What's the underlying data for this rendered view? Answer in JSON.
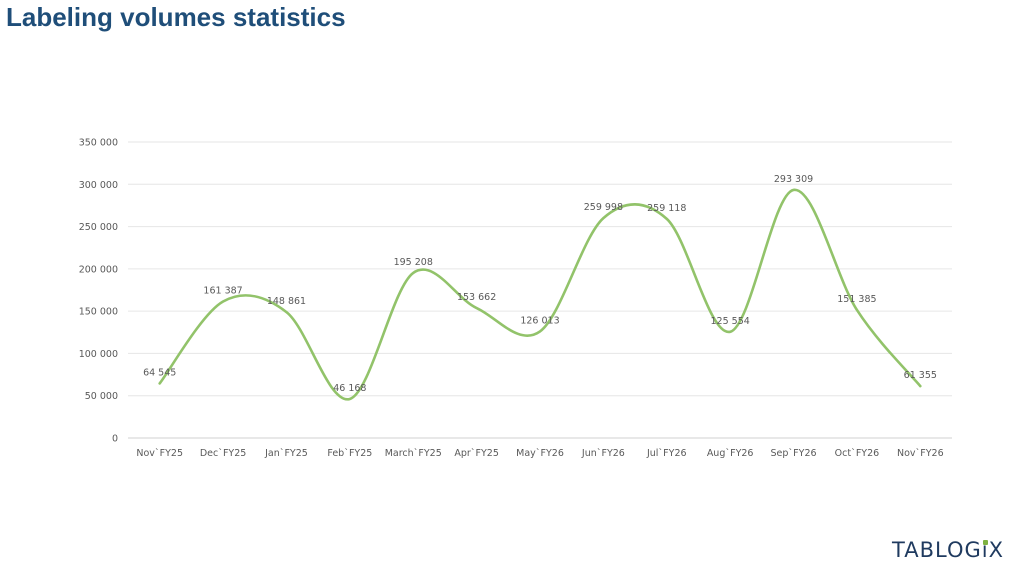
{
  "slide": {
    "title": "Labeling volumes statistics"
  },
  "logo": {
    "text": "TABLOGIX",
    "accent_color": "#7fb241"
  },
  "chart_data": {
    "type": "line",
    "smooth": true,
    "title": "",
    "xlabel": "",
    "ylabel": "",
    "categories": [
      "Nov`FY25",
      "Dec`FY25",
      "Jan`FY25",
      "Feb`FY25",
      "March`FY25",
      "Apr`FY25",
      "May`FY26",
      "Jun`FY26",
      "Jul`FY26",
      "Aug`FY26",
      "Sep`FY26",
      "Oct`FY26",
      "Nov`FY26"
    ],
    "series": [
      {
        "values": [
          64545,
          161387,
          148861,
          46168,
          195208,
          153662,
          126013,
          259998,
          259118,
          125554,
          293309,
          151385,
          61355
        ],
        "labels": [
          "64 545",
          "161 387",
          "148 861",
          "46 168",
          "195 208",
          "153 662",
          "126 013",
          "259 998",
          "259 118",
          "125 554",
          "293 309",
          "151 385",
          "61 355"
        ],
        "color": "#92c36a"
      }
    ],
    "ylim": [
      0,
      350000
    ],
    "yticks": [
      0,
      50000,
      100000,
      150000,
      200000,
      250000,
      300000,
      350000
    ],
    "ytick_labels": [
      "0",
      "50 000",
      "100 000",
      "150 000",
      "200 000",
      "250 000",
      "300 000",
      "350 000"
    ],
    "grid": true,
    "legend": "none"
  }
}
